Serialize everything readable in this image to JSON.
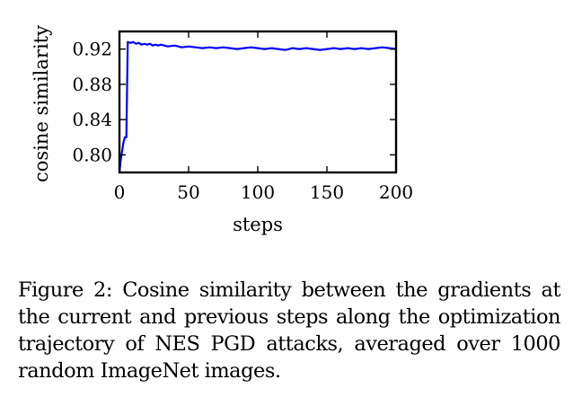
{
  "chart_data": {
    "type": "line",
    "xlabel": "steps",
    "ylabel": "cosine similarity",
    "xlim": [
      0,
      200
    ],
    "ylim": [
      0.78,
      0.94
    ],
    "xticks": [
      0,
      50,
      100,
      150,
      200
    ],
    "yticks": [
      0.8,
      0.84,
      0.88,
      0.92
    ],
    "xtick_labels": [
      "0",
      "50",
      "100",
      "150",
      "200"
    ],
    "ytick_labels": [
      "0.80",
      "0.84",
      "0.88",
      "0.92"
    ],
    "grid": false,
    "legend": "none",
    "series": [
      {
        "color": "#0000ff",
        "x": [
          0,
          1,
          2,
          3,
          4,
          5,
          6,
          8,
          10,
          12,
          14,
          16,
          18,
          20,
          22,
          24,
          26,
          28,
          30,
          35,
          40,
          45,
          50,
          55,
          60,
          65,
          70,
          75,
          80,
          85,
          90,
          95,
          100,
          105,
          110,
          115,
          120,
          125,
          130,
          135,
          140,
          145,
          150,
          155,
          160,
          165,
          170,
          175,
          180,
          185,
          190,
          195,
          200
        ],
        "y": [
          0.78,
          0.795,
          0.805,
          0.815,
          0.82,
          0.82,
          0.928,
          0.927,
          0.928,
          0.926,
          0.927,
          0.925,
          0.926,
          0.925,
          0.926,
          0.924,
          0.925,
          0.924,
          0.925,
          0.923,
          0.924,
          0.922,
          0.923,
          0.922,
          0.921,
          0.922,
          0.921,
          0.922,
          0.921,
          0.92,
          0.921,
          0.922,
          0.921,
          0.92,
          0.921,
          0.92,
          0.919,
          0.921,
          0.92,
          0.921,
          0.92,
          0.919,
          0.92,
          0.921,
          0.92,
          0.921,
          0.92,
          0.921,
          0.92,
          0.921,
          0.922,
          0.921,
          0.92
        ]
      }
    ]
  },
  "caption": {
    "text": "Figure 2: Cosine similarity between the gradients at the current and previous steps along the optimization trajectory of NES PGD attacks, averaged over 1000 random ImageNet images."
  }
}
